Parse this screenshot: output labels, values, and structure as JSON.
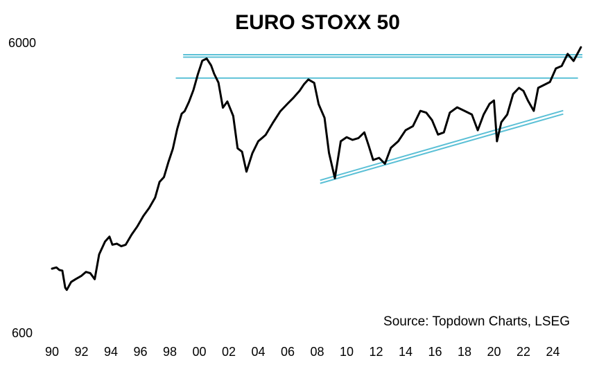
{
  "chart_data": {
    "type": "line",
    "title": "EURO STOXX 50",
    "source": "Source: Topdown Charts, LSEG",
    "y_scale": "log",
    "ylim": [
      600,
      6000
    ],
    "y_ticks": [
      {
        "value": 6000,
        "label": "6000"
      },
      {
        "value": 600,
        "label": "600"
      }
    ],
    "xlim": [
      1990,
      2026
    ],
    "x_ticks": [
      {
        "value": 1990,
        "label": "90"
      },
      {
        "value": 1992,
        "label": "92"
      },
      {
        "value": 1994,
        "label": "94"
      },
      {
        "value": 1996,
        "label": "96"
      },
      {
        "value": 1998,
        "label": "98"
      },
      {
        "value": 2000,
        "label": "00"
      },
      {
        "value": 2002,
        "label": "02"
      },
      {
        "value": 2004,
        "label": "04"
      },
      {
        "value": 2006,
        "label": "06"
      },
      {
        "value": 2008,
        "label": "08"
      },
      {
        "value": 2010,
        "label": "10"
      },
      {
        "value": 2012,
        "label": "12"
      },
      {
        "value": 2014,
        "label": "14"
      },
      {
        "value": 2016,
        "label": "16"
      },
      {
        "value": 2018,
        "label": "18"
      },
      {
        "value": 2020,
        "label": "20"
      },
      {
        "value": 2022,
        "label": "22"
      },
      {
        "value": 2024,
        "label": "24"
      }
    ],
    "grid": false,
    "colors": {
      "series": "#000000",
      "resistance": "#5bc0d6",
      "support": "#5bc0d6"
    },
    "series": [
      {
        "x": [
          1990.0,
          1990.3,
          1990.5,
          1990.7,
          1990.9,
          1991.0,
          1991.3,
          1991.6,
          1992.0,
          1992.3,
          1992.6,
          1992.9,
          1993.2,
          1993.6,
          1993.9,
          1994.1,
          1994.4,
          1994.7,
          1995.0,
          1995.4,
          1995.8,
          1996.2,
          1996.6,
          1997.0,
          1997.3,
          1997.6,
          1997.9,
          1998.2,
          1998.5,
          1998.8,
          1999.0,
          1999.3,
          1999.6,
          1999.9,
          2000.2,
          2000.5,
          2000.8,
          2001.0,
          2001.3,
          2001.6,
          2001.9,
          2002.3,
          2002.6,
          2002.9,
          2003.2,
          2003.6,
          2004.0,
          2004.5,
          2005.0,
          2005.5,
          2006.0,
          2006.4,
          2006.8,
          2007.1,
          2007.4,
          2007.8,
          2008.1,
          2008.5,
          2008.8,
          2009.2,
          2009.6,
          2010.0,
          2010.4,
          2010.8,
          2011.2,
          2011.5,
          2011.8,
          2012.2,
          2012.6,
          2013.0,
          2013.5,
          2014.0,
          2014.5,
          2015.0,
          2015.4,
          2015.8,
          2016.2,
          2016.6,
          2017.0,
          2017.5,
          2018.0,
          2018.5,
          2018.9,
          2019.3,
          2019.7,
          2020.0,
          2020.2,
          2020.5,
          2020.9,
          2021.3,
          2021.7,
          2022.0,
          2022.3,
          2022.7,
          2023.0,
          2023.4,
          2023.8,
          2024.2,
          2024.6,
          2025.0,
          2025.4,
          2025.9
        ],
        "y": [
          1000,
          1010,
          990,
          985,
          860,
          845,
          900,
          920,
          945,
          975,
          965,
          920,
          1120,
          1240,
          1290,
          1210,
          1220,
          1195,
          1210,
          1310,
          1400,
          1520,
          1620,
          1760,
          1990,
          2070,
          2330,
          2590,
          3030,
          3420,
          3490,
          3760,
          4130,
          4680,
          5210,
          5300,
          5020,
          4700,
          4380,
          3590,
          3770,
          3360,
          2600,
          2530,
          2160,
          2500,
          2750,
          2890,
          3190,
          3490,
          3710,
          3890,
          4100,
          4320,
          4490,
          4370,
          3690,
          3310,
          2510,
          2050,
          2750,
          2840,
          2780,
          2820,
          2950,
          2650,
          2370,
          2410,
          2300,
          2610,
          2750,
          3000,
          3100,
          3500,
          3450,
          3250,
          2900,
          2950,
          3450,
          3600,
          3500,
          3400,
          3000,
          3400,
          3700,
          3800,
          2750,
          3200,
          3400,
          4000,
          4200,
          4100,
          3800,
          3500,
          4200,
          4300,
          4400,
          4900,
          5000,
          5500,
          5200,
          5800
        ]
      }
    ],
    "resistance_lines": [
      {
        "x": [
          1998.9,
          2026.0
        ],
        "y": 5464
      },
      {
        "x": [
          1998.9,
          2026.0
        ],
        "y": 5360
      },
      {
        "x": [
          1998.4,
          2025.7
        ],
        "y": 4540
      }
    ],
    "support_lines": [
      {
        "x": [
          2008.2,
          2024.7
        ],
        "y": [
          2018,
          3507
        ]
      },
      {
        "x": [
          2008.2,
          2024.7
        ],
        "y": [
          1969,
          3412
        ]
      }
    ]
  }
}
